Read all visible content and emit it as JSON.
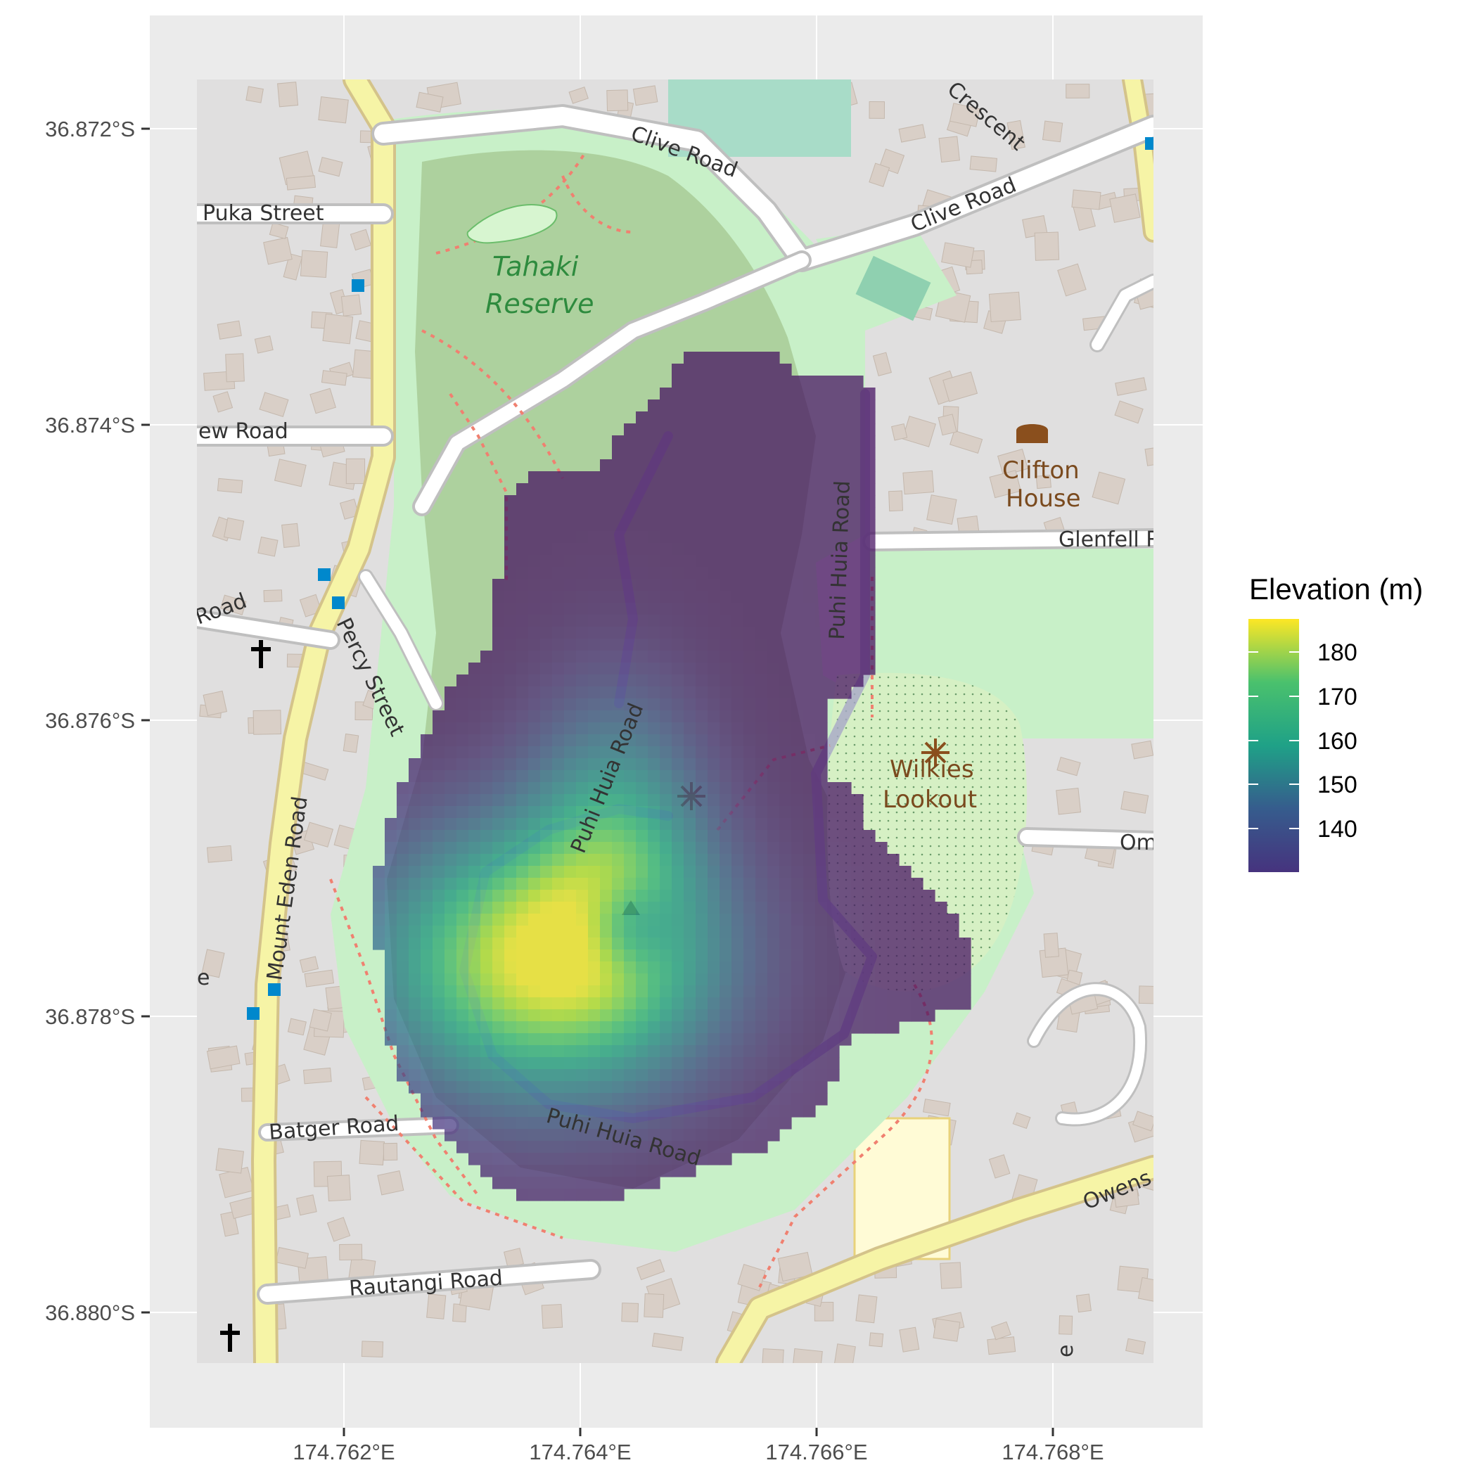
{
  "map": {
    "basemap_labels": {
      "tahaki": [
        "Tahaki",
        "Reserve"
      ],
      "clifton": [
        "Clifton",
        "House"
      ],
      "wilkies": [
        "Wilkies",
        "Lookout"
      ],
      "puka_street": "Puka Street",
      "clive_road_1": "Clive Road",
      "clive_road_2": "Clive Road",
      "crescent": "Crescent",
      "view_road": "ew Road",
      "glenfell": "Glenfell R",
      "percy_street": "Percy Street",
      "road_left": "Road",
      "puhi_huia_1": "Puhi Huia Road",
      "puhi_huia_2": "Puhi Huia Road",
      "puhi_huia_3": "Puhi Huia Road",
      "mount_eden": "Mount Eden Road",
      "batger": "Batger Road",
      "rautangi": "Rautangi Road",
      "owens": "Owens",
      "om": "Om",
      "e_left": "e",
      "e_bottom": "e"
    },
    "colors": {
      "panel_bg": "#ebebeb",
      "gridline": "#ffffff",
      "viridis_low": "#440154",
      "viridis_high": "#fde725"
    }
  },
  "axes": {
    "x_ticks": [
      "174.762°E",
      "174.764°E",
      "174.766°E",
      "174.768°E"
    ],
    "y_ticks": [
      "36.872°S",
      "36.874°S",
      "36.876°S",
      "36.878°S",
      "36.880°S"
    ]
  },
  "legend": {
    "title": "Elevation (m)",
    "labels": [
      "180",
      "170",
      "160",
      "150",
      "140"
    ],
    "range": [
      134,
      186
    ]
  },
  "chart_data": {
    "type": "heatmap",
    "title": "",
    "xlabel": "",
    "ylabel": "",
    "x_ticks": [
      174.762,
      174.764,
      174.766,
      174.768
    ],
    "y_ticks": [
      -36.872,
      -36.874,
      -36.876,
      -36.878,
      -36.88
    ],
    "xlim": [
      174.7605,
      174.7694
    ],
    "ylim": [
      -36.8807,
      -36.8715
    ],
    "fill_label": "Elevation (m)",
    "fill_range": [
      134,
      186
    ],
    "fill_ticks": [
      140,
      150,
      160,
      170,
      180
    ],
    "colormap": "viridis",
    "summit": {
      "lon": 174.7644,
      "lat": -36.8774,
      "elevation": 186
    },
    "legend_position": "right"
  }
}
